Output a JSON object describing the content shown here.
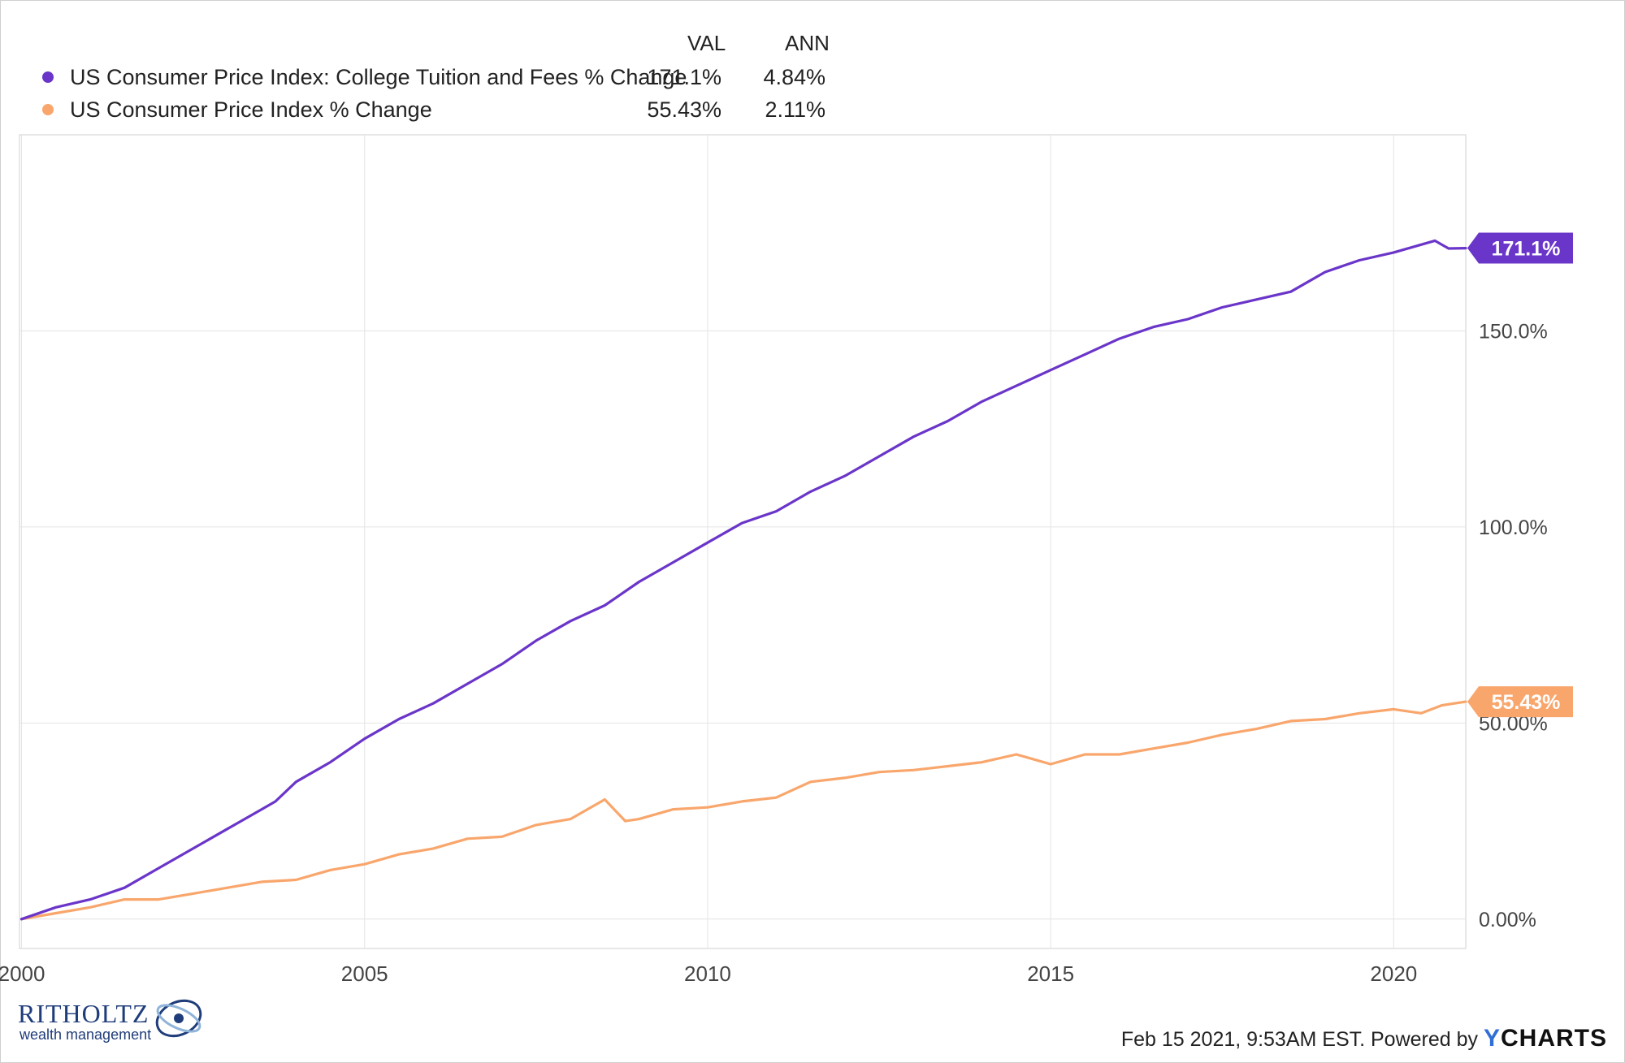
{
  "legend": {
    "col_val": "VAL",
    "col_ann": "ANN",
    "rows": [
      {
        "label": "US Consumer Price Index: College Tuition and Fees % Change",
        "val": "171.1%",
        "ann": "4.84%",
        "color": "#6a35c9"
      },
      {
        "label": "US Consumer Price Index % Change",
        "val": "55.43%",
        "ann": "2.11%",
        "color": "#f9a66c"
      }
    ]
  },
  "chart_data": {
    "type": "line",
    "x_ticks": [
      "2000",
      "2005",
      "2010",
      "2015",
      "2020"
    ],
    "y_ticks": [
      "0.00%",
      "50.00%",
      "100.0%",
      "150.0%"
    ],
    "ylim": [
      -7.5,
      200
    ],
    "xlim": [
      1999.97,
      2021.05
    ],
    "grid": true,
    "legend_position": "top-left",
    "series": [
      {
        "name": "US Consumer Price Index: College Tuition and Fees % Change",
        "color": "#6a35c9",
        "end_label": "171.1%",
        "points": [
          [
            2000.0,
            0
          ],
          [
            2000.5,
            3
          ],
          [
            2001.0,
            5
          ],
          [
            2001.5,
            8
          ],
          [
            2002.0,
            13
          ],
          [
            2002.5,
            18
          ],
          [
            2003.0,
            23
          ],
          [
            2003.5,
            28
          ],
          [
            2003.7,
            30
          ],
          [
            2004.0,
            35
          ],
          [
            2004.5,
            40
          ],
          [
            2005.0,
            46
          ],
          [
            2005.5,
            51
          ],
          [
            2006.0,
            55
          ],
          [
            2006.5,
            60
          ],
          [
            2007.0,
            65
          ],
          [
            2007.5,
            71
          ],
          [
            2008.0,
            76
          ],
          [
            2008.5,
            80
          ],
          [
            2009.0,
            86
          ],
          [
            2009.5,
            91
          ],
          [
            2010.0,
            96
          ],
          [
            2010.5,
            101
          ],
          [
            2011.0,
            104
          ],
          [
            2011.5,
            109
          ],
          [
            2012.0,
            113
          ],
          [
            2012.5,
            118
          ],
          [
            2013.0,
            123
          ],
          [
            2013.5,
            127
          ],
          [
            2014.0,
            132
          ],
          [
            2014.5,
            136
          ],
          [
            2015.0,
            140
          ],
          [
            2015.5,
            144
          ],
          [
            2016.0,
            148
          ],
          [
            2016.5,
            151
          ],
          [
            2017.0,
            153
          ],
          [
            2017.5,
            156
          ],
          [
            2018.0,
            158
          ],
          [
            2018.5,
            160
          ],
          [
            2019.0,
            165
          ],
          [
            2019.5,
            168
          ],
          [
            2020.0,
            170
          ],
          [
            2020.6,
            173
          ],
          [
            2020.8,
            171
          ],
          [
            2021.05,
            171.1
          ]
        ]
      },
      {
        "name": "US Consumer Price Index % Change",
        "color": "#f9a66c",
        "end_label": "55.43%",
        "points": [
          [
            2000.0,
            0
          ],
          [
            2000.5,
            1.5
          ],
          [
            2001.0,
            3
          ],
          [
            2001.5,
            5
          ],
          [
            2002.0,
            5
          ],
          [
            2002.5,
            6.5
          ],
          [
            2003.0,
            8
          ],
          [
            2003.5,
            9.5
          ],
          [
            2004.0,
            10
          ],
          [
            2004.5,
            12.5
          ],
          [
            2005.0,
            14
          ],
          [
            2005.5,
            16.5
          ],
          [
            2006.0,
            18
          ],
          [
            2006.5,
            20.5
          ],
          [
            2007.0,
            21
          ],
          [
            2007.5,
            24
          ],
          [
            2008.0,
            25.5
          ],
          [
            2008.5,
            30.5
          ],
          [
            2008.8,
            25
          ],
          [
            2009.0,
            25.5
          ],
          [
            2009.5,
            28
          ],
          [
            2010.0,
            28.5
          ],
          [
            2010.5,
            30
          ],
          [
            2011.0,
            31
          ],
          [
            2011.5,
            35
          ],
          [
            2012.0,
            36
          ],
          [
            2012.5,
            37.5
          ],
          [
            2013.0,
            38
          ],
          [
            2013.5,
            39
          ],
          [
            2014.0,
            40
          ],
          [
            2014.5,
            42
          ],
          [
            2015.0,
            39.5
          ],
          [
            2015.5,
            42
          ],
          [
            2016.0,
            42
          ],
          [
            2016.5,
            43.5
          ],
          [
            2017.0,
            45
          ],
          [
            2017.5,
            47
          ],
          [
            2018.0,
            48.5
          ],
          [
            2018.5,
            50.5
          ],
          [
            2019.0,
            51
          ],
          [
            2019.5,
            52.5
          ],
          [
            2020.0,
            53.5
          ],
          [
            2020.4,
            52.5
          ],
          [
            2020.7,
            54.5
          ],
          [
            2021.05,
            55.43
          ]
        ]
      }
    ]
  },
  "footer": {
    "text": "Feb 15 2021, 9:53AM EST. Powered by",
    "brand_y": "Y",
    "brand_rest": "CHARTS"
  },
  "logo": {
    "name": "RITHOLTZ",
    "sub": "wealth management"
  }
}
